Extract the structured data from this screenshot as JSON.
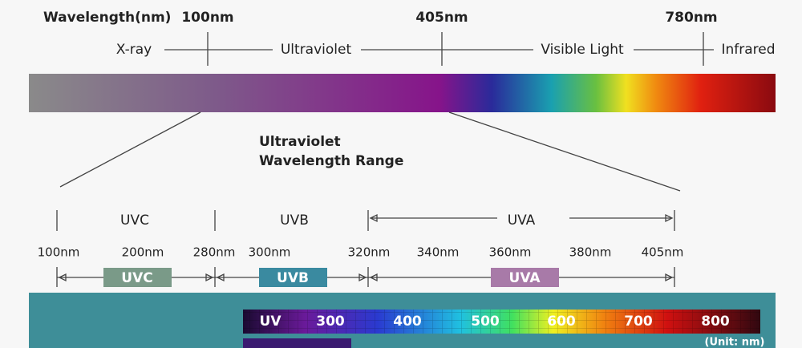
{
  "header": {
    "title": "Wavelength(nm)",
    "marks": [
      "100nm",
      "405nm",
      "780nm"
    ],
    "regions": [
      "X-ray",
      "Ultraviolet",
      "Visible Light",
      "Infrared"
    ]
  },
  "detail": {
    "title": [
      "Ultraviolet",
      "Wavelength Range"
    ],
    "bands": [
      "UVC",
      "UVB",
      "UVA"
    ],
    "ticks": [
      "100nm",
      "200nm",
      "280nm",
      "300nm",
      "320nm",
      "340nm",
      "360nm",
      "380nm",
      "405nm"
    ],
    "badges": [
      "UVC",
      "UVB",
      "UVA"
    ]
  },
  "spectrum": {
    "labels": [
      "UV",
      "300",
      "400",
      "500",
      "600",
      "700",
      "800"
    ],
    "unit": "(Unit: nm)"
  }
}
